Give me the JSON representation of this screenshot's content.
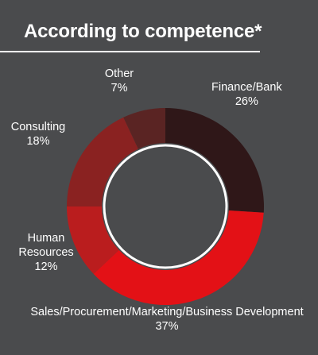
{
  "title": "According to competence*",
  "chart_data": {
    "type": "pie",
    "title": "According to competence*",
    "style": "donut",
    "slices": [
      {
        "label": "Finance/Bank",
        "value": 26,
        "display": "26%",
        "color": "#2f1718"
      },
      {
        "label": "Sales/Procurement/Marketing/Business Development",
        "value": 37,
        "display": "37%",
        "color": "#e31116"
      },
      {
        "label": "Human Resources",
        "label_lines": [
          "Human",
          "Resources"
        ],
        "value": 12,
        "display": "12%",
        "color": "#ba1d1e"
      },
      {
        "label": "Consulting",
        "value": 18,
        "display": "18%",
        "color": "#8a2221"
      },
      {
        "label": "Other",
        "value": 7,
        "display": "7%",
        "color": "#5a2423"
      }
    ]
  }
}
